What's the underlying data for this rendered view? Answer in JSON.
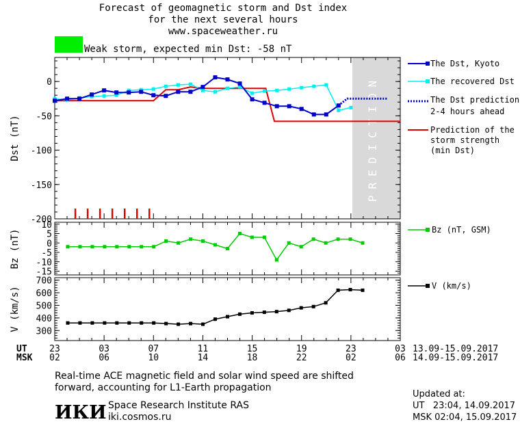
{
  "header": {
    "line1": "Forecast of geomagnetic storm and Dst index",
    "line2": "for the next several hours",
    "line3": "www.spaceweather.ru",
    "storm_label": "Weak storm, expected min Dst: -58 nT",
    "storm_color": "#00ee00"
  },
  "prediction_label": "PREDICTION",
  "time_axis": {
    "ut_label": "UT",
    "msk_label": "MSK",
    "ut_ticks": [
      "23",
      "03",
      "07",
      "11",
      "15",
      "19",
      "23",
      "03"
    ],
    "msk_ticks": [
      "02",
      "06",
      "10",
      "14",
      "18",
      "22",
      "02",
      "06"
    ],
    "ut_range": "13.09-15.09.2017",
    "msk_range": "14.09-15.09.2017"
  },
  "footer": {
    "note_line1": "Real-time ACE magnetic field and solar wind speed are shifted",
    "note_line2": "forward, accounting for L1-Earth propagation",
    "logo_text": "ИКИ",
    "institute": "Space Research Institute RAS",
    "site": "iki.cosmos.ru",
    "updated_label": "Updated at:",
    "updated_ut": "UT   23:04, 14.09.2017",
    "updated_msk": "MSK 02:04, 15.09.2017"
  },
  "colors": {
    "dst_kyoto": "#0000cc",
    "dst_recovered": "#00eeee",
    "prediction_dots": "#0000cc",
    "storm_strength": "#dd0000",
    "bz": "#00cc00",
    "v": "#000000",
    "prediction_band": "#d9d9d9"
  },
  "chart_data": [
    {
      "type": "line",
      "ylabel": "Dst (nT)",
      "ylim": [
        -200,
        35
      ],
      "yticks": [
        "0",
        "-50",
        "-100",
        "-150",
        "-200"
      ],
      "x": [
        0,
        1,
        2,
        3,
        4,
        5,
        6,
        7,
        8,
        9,
        10,
        11,
        12,
        13,
        14,
        15,
        16,
        17,
        18,
        19,
        20,
        21,
        22,
        23,
        24
      ],
      "series": [
        {
          "name": "The Dst, Kyoto",
          "values": [
            -28,
            -25,
            -25,
            -19,
            -13,
            -16,
            -16,
            -15,
            -20,
            -21,
            -15,
            -15,
            -8,
            6,
            3,
            -3,
            -26,
            -31,
            -36,
            -36,
            -40,
            -48,
            -48,
            -35,
            null
          ]
        },
        {
          "name": "The recovered Dst",
          "values": [
            -25,
            -27,
            -24,
            -22,
            -21,
            -20,
            -13,
            -12,
            -11,
            -7,
            -5,
            -4,
            -13,
            -15,
            -10,
            -8,
            -17,
            -14,
            -13,
            -11,
            -9,
            -7,
            -5,
            -42,
            -38
          ]
        },
        {
          "name": "The Dst prediction",
          "name_line2": "2-4 hours ahead",
          "points": [
            [
              23,
              -35
            ],
            [
              23.7,
              -25
            ],
            [
              27,
              -25
            ]
          ]
        },
        {
          "name": "Prediction of the",
          "name_line2": "storm strength",
          "name_line3": "(min Dst)",
          "points": [
            [
              0,
              -28
            ],
            [
              8,
              -28
            ],
            [
              9,
              -12
            ],
            [
              10,
              -12
            ],
            [
              11,
              -8
            ],
            [
              12,
              -10
            ],
            [
              17.1,
              -10
            ],
            [
              17.8,
              -58
            ],
            [
              28,
              -58
            ]
          ]
        }
      ],
      "markers_red_ticks_x": [
        2,
        3,
        4,
        5,
        6,
        7,
        8
      ]
    },
    {
      "type": "line",
      "ylabel": "Bz (nT)",
      "ylim": [
        -17,
        11
      ],
      "yticks": [
        "10",
        "5",
        "0",
        "-5",
        "-10",
        "-15"
      ],
      "series": [
        {
          "name": "Bz (nT, GSM)",
          "x": [
            1,
            2,
            3,
            4,
            5,
            6,
            7,
            8,
            9,
            10,
            11,
            12,
            13,
            14,
            15,
            16,
            17,
            18,
            19,
            20,
            21,
            22,
            23,
            24,
            25
          ],
          "values": [
            -2,
            -2,
            -2,
            -2,
            -2,
            -2,
            -2,
            -2,
            1,
            0,
            2,
            1,
            -1,
            -3,
            5,
            3,
            3,
            -9,
            0,
            -2,
            2,
            0,
            2,
            2,
            0
          ]
        }
      ]
    },
    {
      "type": "line",
      "ylabel": "V (km/s)",
      "ylim": [
        220,
        720
      ],
      "yticks": [
        "700",
        "600",
        "500",
        "400",
        "300"
      ],
      "series": [
        {
          "name": "V (km/s)",
          "x": [
            1,
            2,
            3,
            4,
            5,
            6,
            7,
            8,
            9,
            10,
            11,
            12,
            13,
            14,
            15,
            16,
            17,
            18,
            19,
            20,
            21,
            22,
            23,
            24,
            25
          ],
          "values": [
            360,
            360,
            360,
            360,
            360,
            360,
            360,
            360,
            355,
            350,
            355,
            350,
            390,
            410,
            430,
            440,
            445,
            450,
            460,
            480,
            490,
            520,
            620,
            625,
            620
          ]
        }
      ]
    }
  ]
}
